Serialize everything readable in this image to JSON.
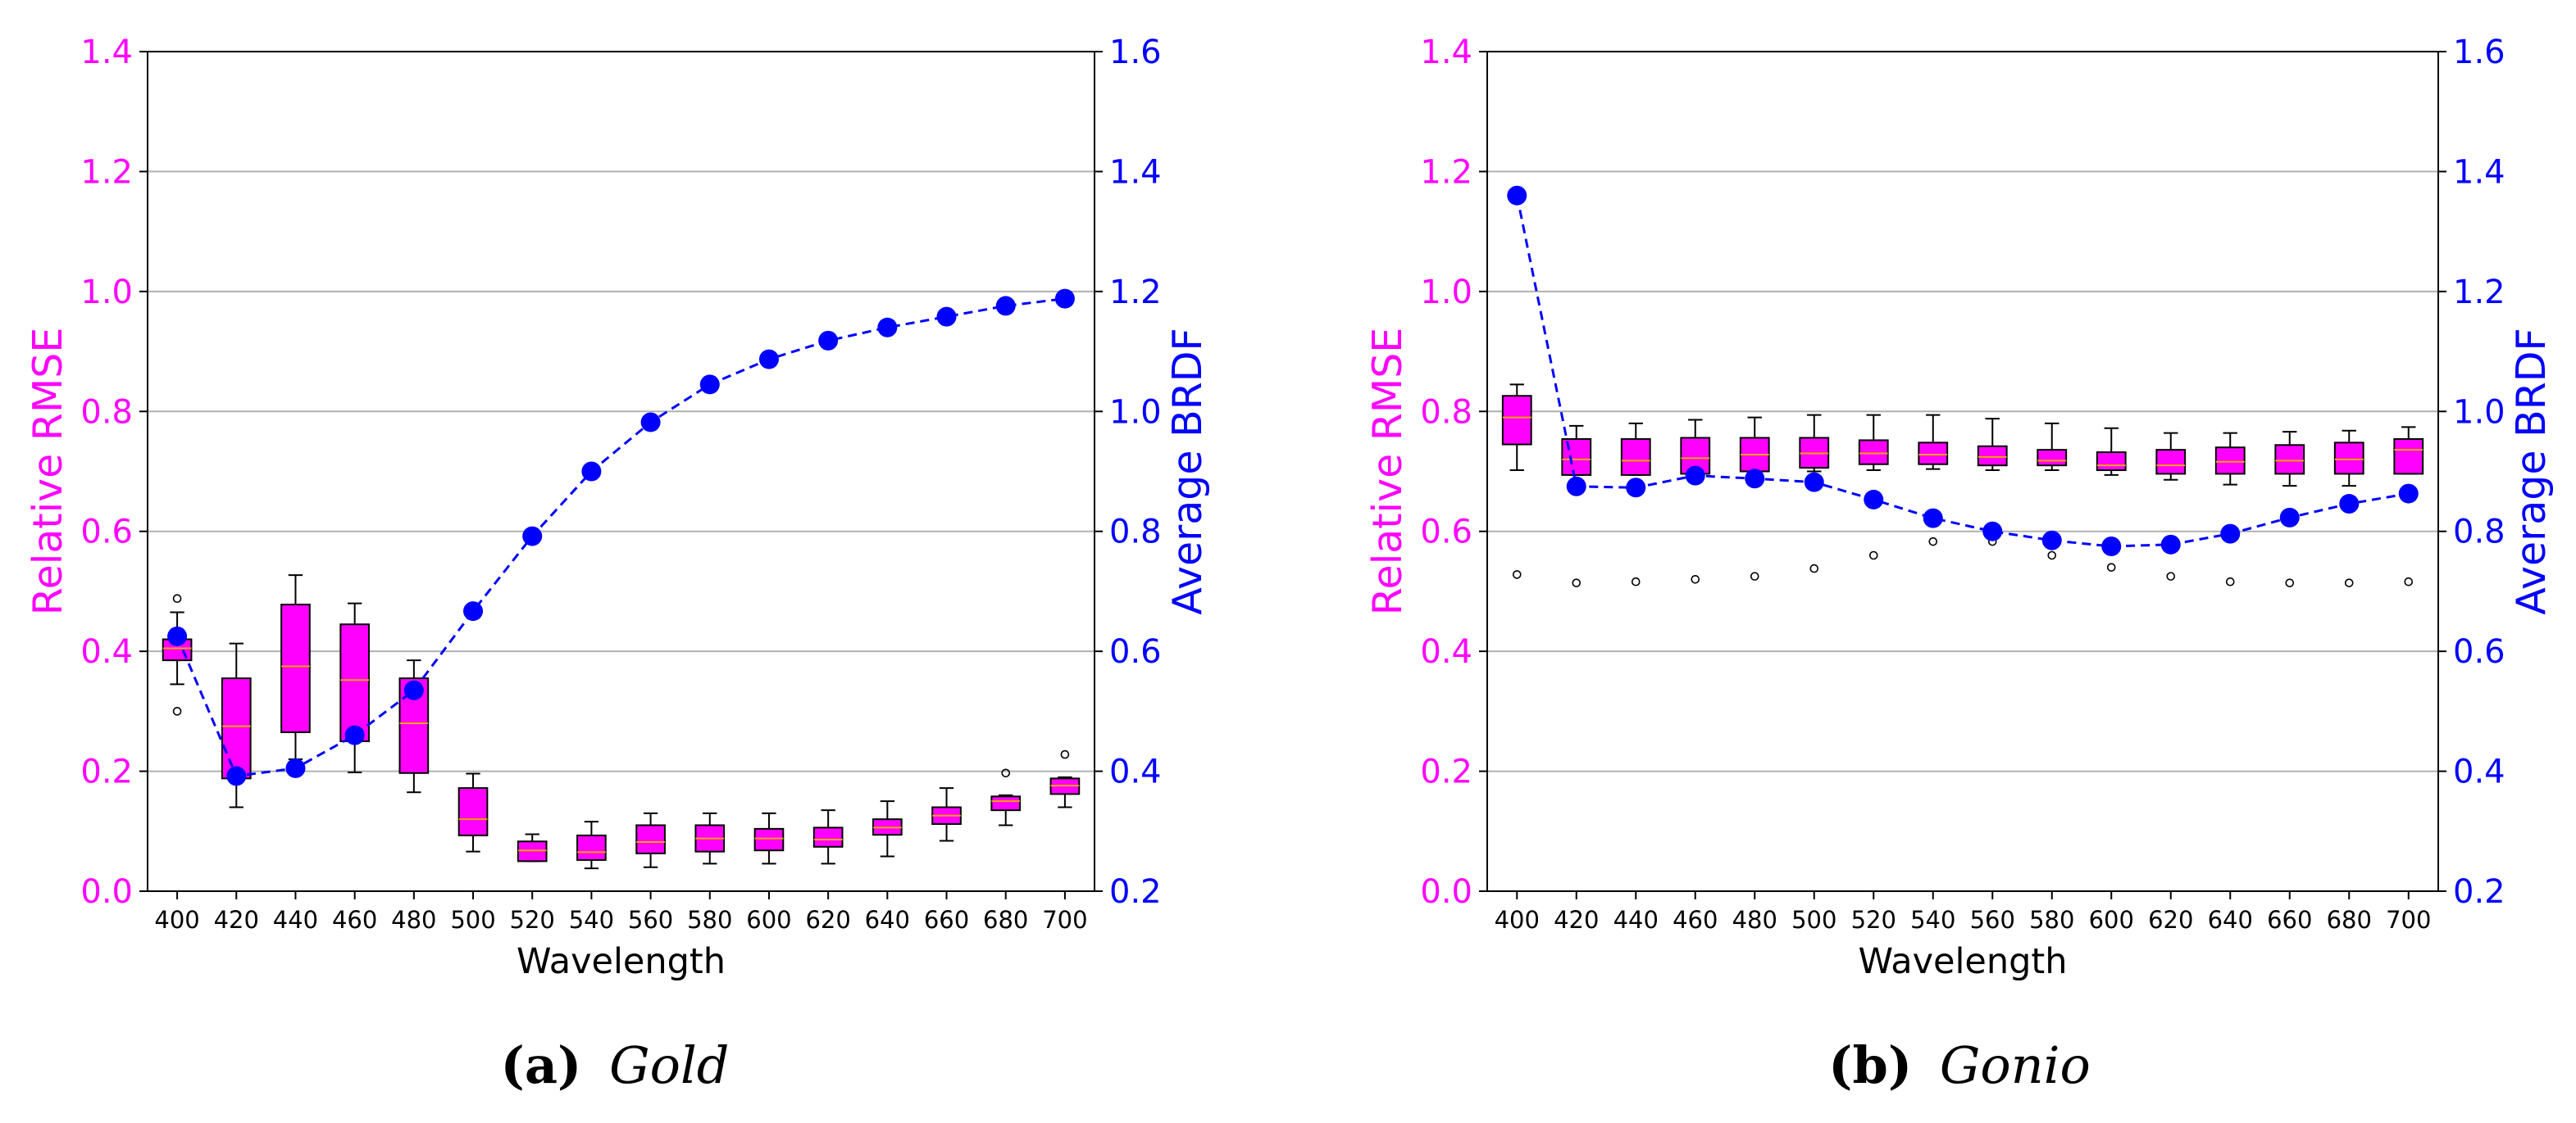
{
  "chart_data": [
    {
      "type": "box",
      "caption": {
        "label": "(a)",
        "name": "Gold"
      },
      "xlabel": "Wavelength",
      "ylabel_left": "Relative RMSE",
      "ylabel_right": "Average BRDF",
      "ylim_left": [
        0.0,
        1.4
      ],
      "ylim_right": [
        0.2,
        1.6
      ],
      "left_ticks": [
        "0.0",
        "0.2",
        "0.4",
        "0.6",
        "0.8",
        "1.0",
        "1.2",
        "1.4"
      ],
      "right_ticks": [
        "0.2",
        "0.4",
        "0.6",
        "0.8",
        "1.0",
        "1.2",
        "1.4",
        "1.6"
      ],
      "categories": [
        "400",
        "420",
        "440",
        "460",
        "480",
        "500",
        "520",
        "540",
        "560",
        "580",
        "600",
        "620",
        "640",
        "660",
        "680",
        "700"
      ],
      "grid": true,
      "boxes": [
        {
          "wl": "400",
          "q1": 0.385,
          "median": 0.405,
          "q3": 0.42,
          "wlo": 0.345,
          "whi": 0.465,
          "fliers": [
            0.3,
            0.488
          ]
        },
        {
          "wl": "420",
          "q1": 0.188,
          "median": 0.275,
          "q3": 0.355,
          "wlo": 0.14,
          "whi": 0.413,
          "fliers": []
        },
        {
          "wl": "440",
          "q1": 0.265,
          "median": 0.375,
          "q3": 0.478,
          "wlo": 0.22,
          "whi": 0.527,
          "fliers": []
        },
        {
          "wl": "460",
          "q1": 0.25,
          "median": 0.352,
          "q3": 0.445,
          "wlo": 0.198,
          "whi": 0.48,
          "fliers": []
        },
        {
          "wl": "480",
          "q1": 0.197,
          "median": 0.28,
          "q3": 0.355,
          "wlo": 0.165,
          "whi": 0.385,
          "fliers": []
        },
        {
          "wl": "500",
          "q1": 0.093,
          "median": 0.12,
          "q3": 0.172,
          "wlo": 0.066,
          "whi": 0.196,
          "fliers": []
        },
        {
          "wl": "520",
          "q1": 0.05,
          "median": 0.068,
          "q3": 0.083,
          "wlo": 0.05,
          "whi": 0.095,
          "fliers": []
        },
        {
          "wl": "540",
          "q1": 0.052,
          "median": 0.065,
          "q3": 0.093,
          "wlo": 0.038,
          "whi": 0.116,
          "fliers": []
        },
        {
          "wl": "560",
          "q1": 0.063,
          "median": 0.082,
          "q3": 0.11,
          "wlo": 0.04,
          "whi": 0.13,
          "fliers": []
        },
        {
          "wl": "580",
          "q1": 0.066,
          "median": 0.088,
          "q3": 0.11,
          "wlo": 0.046,
          "whi": 0.13,
          "fliers": []
        },
        {
          "wl": "600",
          "q1": 0.068,
          "median": 0.088,
          "q3": 0.104,
          "wlo": 0.046,
          "whi": 0.13,
          "fliers": []
        },
        {
          "wl": "620",
          "q1": 0.074,
          "median": 0.086,
          "q3": 0.106,
          "wlo": 0.046,
          "whi": 0.135,
          "fliers": []
        },
        {
          "wl": "640",
          "q1": 0.094,
          "median": 0.106,
          "q3": 0.12,
          "wlo": 0.058,
          "whi": 0.15,
          "fliers": []
        },
        {
          "wl": "660",
          "q1": 0.112,
          "median": 0.126,
          "q3": 0.14,
          "wlo": 0.084,
          "whi": 0.172,
          "fliers": []
        },
        {
          "wl": "680",
          "q1": 0.135,
          "median": 0.15,
          "q3": 0.158,
          "wlo": 0.11,
          "whi": 0.16,
          "fliers": [
            0.197
          ]
        },
        {
          "wl": "700",
          "q1": 0.162,
          "median": 0.176,
          "q3": 0.188,
          "wlo": 0.14,
          "whi": 0.19,
          "fliers": [
            0.228
          ]
        }
      ],
      "brdf": [
        0.625,
        0.392,
        0.405,
        0.46,
        0.535,
        0.667,
        0.792,
        0.9,
        0.982,
        1.045,
        1.087,
        1.118,
        1.14,
        1.158,
        1.176,
        1.188
      ]
    },
    {
      "type": "box",
      "caption": {
        "label": "(b)",
        "name": "Gonio"
      },
      "xlabel": "Wavelength",
      "ylabel_left": "Relative RMSE",
      "ylabel_right": "Average BRDF",
      "ylim_left": [
        0.0,
        1.4
      ],
      "ylim_right": [
        0.2,
        1.6
      ],
      "left_ticks": [
        "0.0",
        "0.2",
        "0.4",
        "0.6",
        "0.8",
        "1.0",
        "1.2",
        "1.4"
      ],
      "right_ticks": [
        "0.2",
        "0.4",
        "0.6",
        "0.8",
        "1.0",
        "1.2",
        "1.4",
        "1.6"
      ],
      "categories": [
        "400",
        "420",
        "440",
        "460",
        "480",
        "500",
        "520",
        "540",
        "560",
        "580",
        "600",
        "620",
        "640",
        "660",
        "680",
        "700"
      ],
      "grid": true,
      "boxes": [
        {
          "wl": "400",
          "q1": 0.745,
          "median": 0.79,
          "q3": 0.826,
          "wlo": 0.702,
          "whi": 0.845,
          "fliers": [
            0.528
          ]
        },
        {
          "wl": "420",
          "q1": 0.694,
          "median": 0.72,
          "q3": 0.754,
          "wlo": 0.694,
          "whi": 0.776,
          "fliers": [
            0.514
          ]
        },
        {
          "wl": "440",
          "q1": 0.694,
          "median": 0.718,
          "q3": 0.754,
          "wlo": 0.694,
          "whi": 0.78,
          "fliers": [
            0.516
          ]
        },
        {
          "wl": "460",
          "q1": 0.696,
          "median": 0.722,
          "q3": 0.756,
          "wlo": 0.696,
          "whi": 0.786,
          "fliers": [
            0.52
          ]
        },
        {
          "wl": "480",
          "q1": 0.7,
          "median": 0.728,
          "q3": 0.756,
          "wlo": 0.696,
          "whi": 0.79,
          "fliers": [
            0.525
          ]
        },
        {
          "wl": "500",
          "q1": 0.706,
          "median": 0.73,
          "q3": 0.756,
          "wlo": 0.7,
          "whi": 0.794,
          "fliers": [
            0.538
          ]
        },
        {
          "wl": "520",
          "q1": 0.712,
          "median": 0.73,
          "q3": 0.752,
          "wlo": 0.702,
          "whi": 0.794,
          "fliers": [
            0.56
          ]
        },
        {
          "wl": "540",
          "q1": 0.712,
          "median": 0.728,
          "q3": 0.748,
          "wlo": 0.704,
          "whi": 0.794,
          "fliers": [
            0.583
          ]
        },
        {
          "wl": "560",
          "q1": 0.71,
          "median": 0.724,
          "q3": 0.742,
          "wlo": 0.702,
          "whi": 0.788,
          "fliers": [
            0.583
          ]
        },
        {
          "wl": "580",
          "q1": 0.71,
          "median": 0.718,
          "q3": 0.736,
          "wlo": 0.702,
          "whi": 0.78,
          "fliers": [
            0.56
          ]
        },
        {
          "wl": "600",
          "q1": 0.702,
          "median": 0.71,
          "q3": 0.732,
          "wlo": 0.694,
          "whi": 0.772,
          "fliers": [
            0.54
          ]
        },
        {
          "wl": "620",
          "q1": 0.696,
          "median": 0.71,
          "q3": 0.736,
          "wlo": 0.686,
          "whi": 0.764,
          "fliers": [
            0.525
          ]
        },
        {
          "wl": "640",
          "q1": 0.696,
          "median": 0.716,
          "q3": 0.74,
          "wlo": 0.678,
          "whi": 0.764,
          "fliers": [
            0.516
          ]
        },
        {
          "wl": "660",
          "q1": 0.696,
          "median": 0.718,
          "q3": 0.744,
          "wlo": 0.676,
          "whi": 0.766,
          "fliers": [
            0.514
          ]
        },
        {
          "wl": "680",
          "q1": 0.696,
          "median": 0.72,
          "q3": 0.748,
          "wlo": 0.676,
          "whi": 0.768,
          "fliers": [
            0.514
          ]
        },
        {
          "wl": "700",
          "q1": 0.696,
          "median": 0.736,
          "q3": 0.754,
          "wlo": 0.696,
          "whi": 0.774,
          "fliers": [
            0.516
          ]
        }
      ],
      "brdf": [
        1.36,
        0.875,
        0.873,
        0.893,
        0.888,
        0.882,
        0.853,
        0.822,
        0.8,
        0.785,
        0.775,
        0.778,
        0.796,
        0.823,
        0.846,
        0.863
      ]
    }
  ],
  "colors": {
    "left_axis": "#ff00ff",
    "right_axis": "#0000ff",
    "box_fill": "#ff00ff",
    "median": "#ffa500",
    "brdf_line": "#0000ff",
    "grid": "#b0b0b0"
  }
}
